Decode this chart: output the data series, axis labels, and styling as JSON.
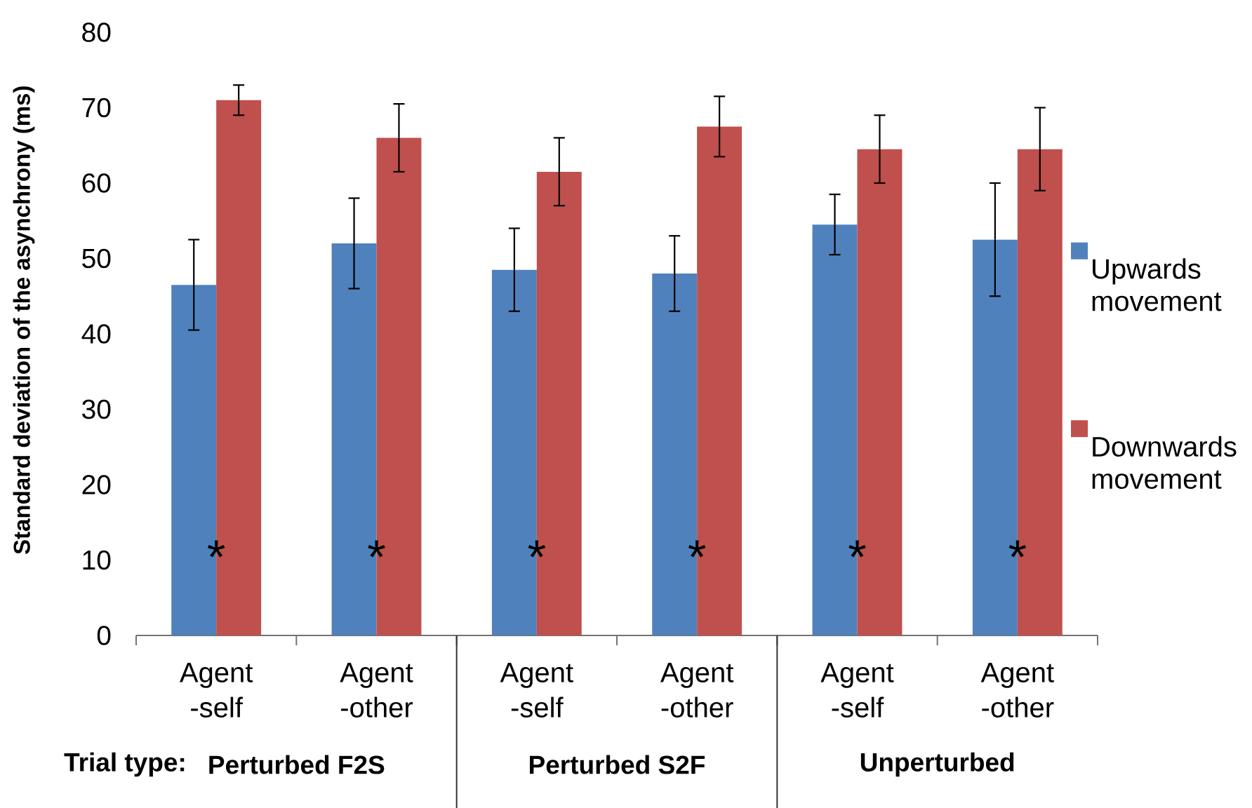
{
  "chart_data": {
    "type": "bar",
    "ylabel": "Standard deviation of the asynchrony (ms)",
    "categories": [
      "Agent -self",
      "Agent -other",
      "Agent -self",
      "Agent -other",
      "Agent -self",
      "Agent -other"
    ],
    "series": [
      {
        "name": "Upwards movement",
        "color": "#4f81bd",
        "values": [
          46.5,
          52,
          48.5,
          48,
          54.5,
          52.5
        ],
        "errors": [
          6,
          6,
          5.5,
          5,
          4,
          7.5
        ]
      },
      {
        "name": "Downwards movement",
        "color": "#c0504d",
        "values": [
          71,
          66,
          61.5,
          67.5,
          64.5,
          64.5
        ],
        "errors": [
          2,
          4.5,
          4.5,
          4,
          4.5,
          5.5
        ]
      }
    ],
    "ylim": [
      0,
      80
    ],
    "yticks": [
      0,
      10,
      20,
      30,
      40,
      50,
      60,
      70,
      80
    ],
    "legend": "right",
    "annotations": [
      "*",
      "*",
      "*",
      "*",
      "*",
      "*",
      "Trial type:",
      "Perturbed F2S",
      "Perturbed S2F",
      "Unperturbed"
    ]
  }
}
